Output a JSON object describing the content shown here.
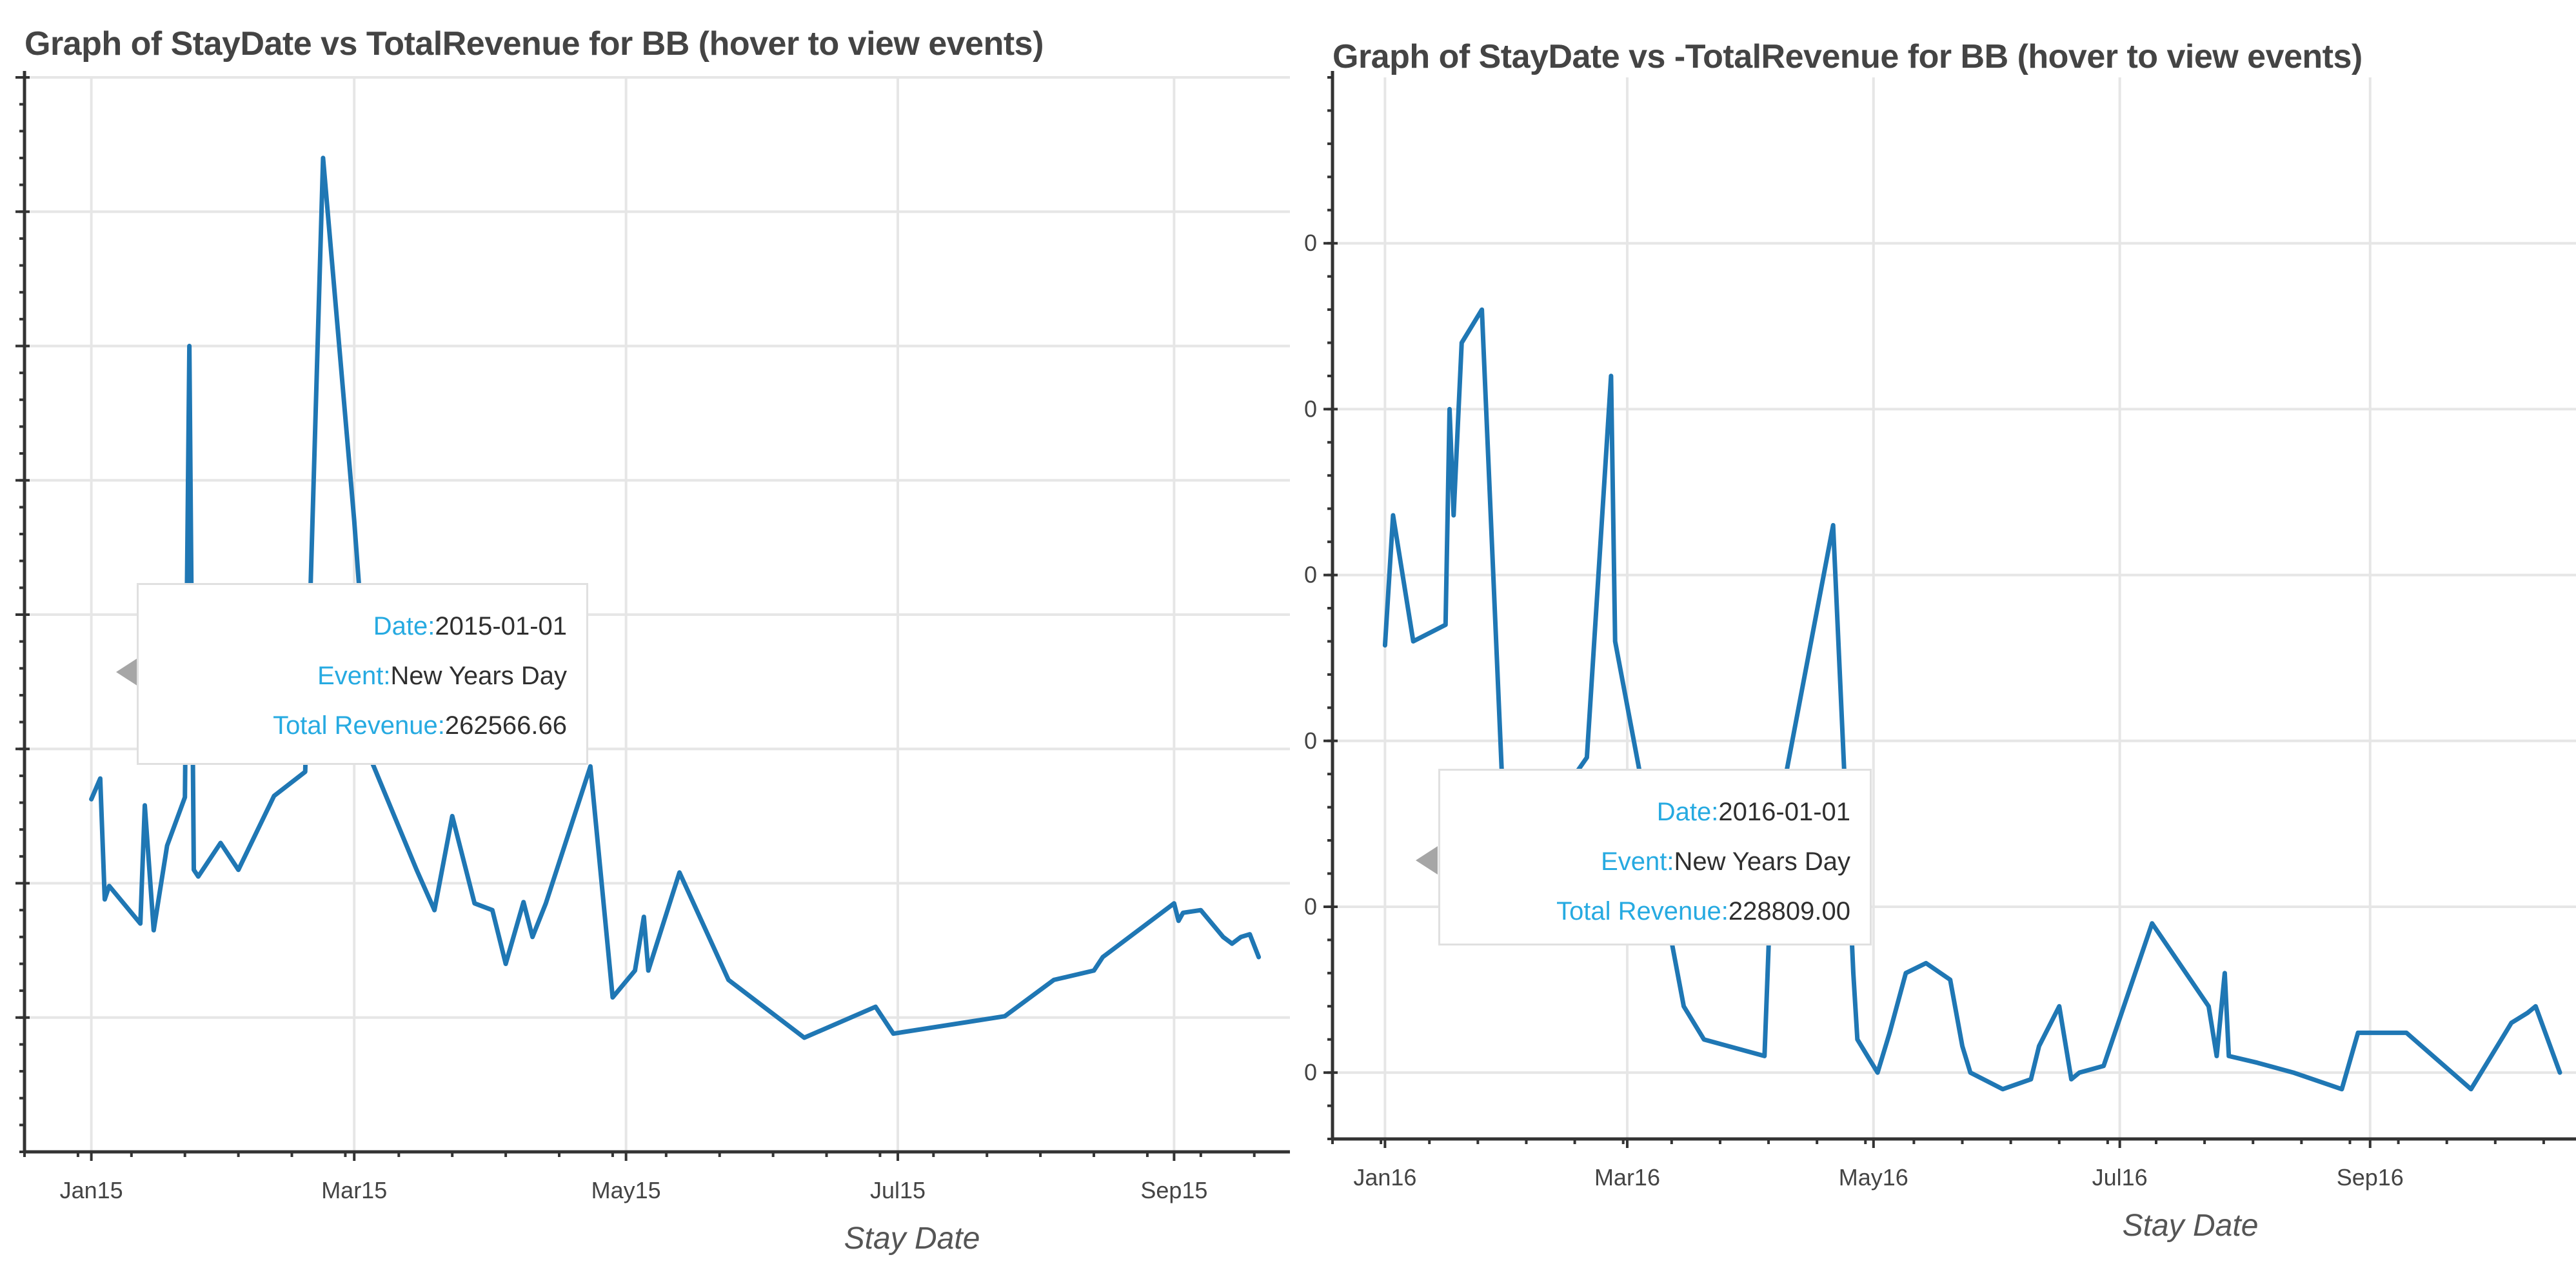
{
  "chart_data": [
    {
      "type": "line",
      "title": "Graph of StayDate vs TotalRevenue for BB (hover to view events)",
      "xlabel": "Stay Date",
      "ylabel": "",
      "x_ticks": [
        "Jan15",
        "Mar15",
        "May15",
        "Jul15",
        "Sep15"
      ],
      "x_range": [
        "2014-12-17",
        "2015-09-27"
      ],
      "grid": true,
      "series": [
        {
          "name": "",
          "x": [
            "2015-01-01",
            "2015-01-03",
            "2015-01-04",
            "2015-01-05",
            "2015-01-12",
            "2015-01-13",
            "2015-01-15",
            "2015-01-18",
            "2015-01-22",
            "2015-01-23",
            "2015-01-24",
            "2015-01-25",
            "2015-01-30",
            "2015-02-03",
            "2015-02-11",
            "2015-02-18",
            "2015-02-22",
            "2015-03-01",
            "2015-03-05",
            "2015-03-15",
            "2015-03-19",
            "2015-03-23",
            "2015-03-28",
            "2015-04-01",
            "2015-04-04",
            "2015-04-08",
            "2015-04-10",
            "2015-04-13",
            "2015-04-23",
            "2015-04-28",
            "2015-05-03",
            "2015-05-05",
            "2015-05-06",
            "2015-05-13",
            "2015-05-24",
            "2015-06-10",
            "2015-06-26",
            "2015-06-30",
            "2015-07-25",
            "2015-08-05",
            "2015-08-14",
            "2015-08-16",
            "2015-09-01",
            "2015-09-02",
            "2015-09-03",
            "2015-09-07",
            "2015-09-12",
            "2015-09-14",
            "2015-09-16",
            "2015-09-18",
            "2015-09-20"
          ],
          "y": [
            262566.66,
            278000,
            188000,
            198000,
            170000,
            258000,
            165000,
            228000,
            264000,
            600000,
            210000,
            205000,
            230000,
            210000,
            265000,
            283000,
            740000,
            470000,
            290000,
            210000,
            180000,
            250000,
            185000,
            180000,
            140000,
            186000,
            160000,
            185000,
            287000,
            115000,
            135000,
            175000,
            135000,
            208000,
            128000,
            85000,
            108000,
            88000,
            101000,
            128000,
            135000,
            145000,
            185000,
            172000,
            178000,
            180000,
            160000,
            155000,
            160000,
            162000,
            145000
          ]
        }
      ],
      "tooltip": {
        "date_label": "Date:",
        "date": "2015-01-01",
        "event_label": "Event:",
        "event": "New Years Day",
        "revenue_label": "Total Revenue:",
        "revenue": "262566.66"
      }
    },
    {
      "type": "line",
      "title": "Graph of StayDate vs -TotalRevenue for BB (hover to view events)",
      "xlabel": "Stay Date",
      "ylabel": "",
      "x_ticks": [
        "Jan16",
        "Mar16",
        "May16",
        "Jul16",
        "Sep16"
      ],
      "y_tick_labels": [
        "0",
        "0",
        "0",
        "0",
        "0",
        "0"
      ],
      "x_range": [
        "2015-12-19",
        "2016-10-22"
      ],
      "grid": true,
      "series": [
        {
          "name": "",
          "x": [
            "2016-01-01",
            "2016-01-03",
            "2016-01-08",
            "2016-01-16",
            "2016-01-17",
            "2016-01-18",
            "2016-01-20",
            "2016-01-25",
            "2016-01-31",
            "2016-02-20",
            "2016-02-26",
            "2016-02-27",
            "2016-03-15",
            "2016-03-20",
            "2016-04-04",
            "2016-04-06",
            "2016-04-07",
            "2016-04-21",
            "2016-04-26",
            "2016-04-27",
            "2016-05-02",
            "2016-05-05",
            "2016-05-09",
            "2016-05-14",
            "2016-05-20",
            "2016-05-23",
            "2016-05-25",
            "2016-06-02",
            "2016-06-09",
            "2016-06-11",
            "2016-06-16",
            "2016-06-19",
            "2016-06-21",
            "2016-06-27",
            "2016-07-09",
            "2016-07-23",
            "2016-07-25",
            "2016-07-27",
            "2016-07-28",
            "2016-08-04",
            "2016-08-13",
            "2016-08-25",
            "2016-08-29",
            "2016-09-10",
            "2016-09-26",
            "2016-09-30",
            "2016-10-05",
            "2016-10-06",
            "2016-10-10",
            "2016-10-12",
            "2016-10-18"
          ],
          "y": [
            228809.0,
            268000,
            230000,
            235000,
            300000,
            268000,
            320000,
            330000,
            160000,
            195000,
            310000,
            230000,
            120000,
            110000,
            105000,
            170000,
            175000,
            265000,
            130000,
            110000,
            100000,
            112000,
            130000,
            133000,
            128000,
            108000,
            100000,
            95000,
            98000,
            108000,
            120000,
            98000,
            100000,
            102000,
            145000,
            120000,
            105000,
            130000,
            105000,
            103000,
            100000,
            95000,
            112000,
            112000,
            95000,
            103000,
            113000,
            115000,
            118000,
            120000,
            100000
          ]
        }
      ],
      "tooltip": {
        "date_label": "Date:",
        "date": "2016-01-01",
        "event_label": "Event:",
        "event": "New Years Day",
        "revenue_label": "Total Revenue:",
        "revenue": "228809.00"
      }
    }
  ]
}
